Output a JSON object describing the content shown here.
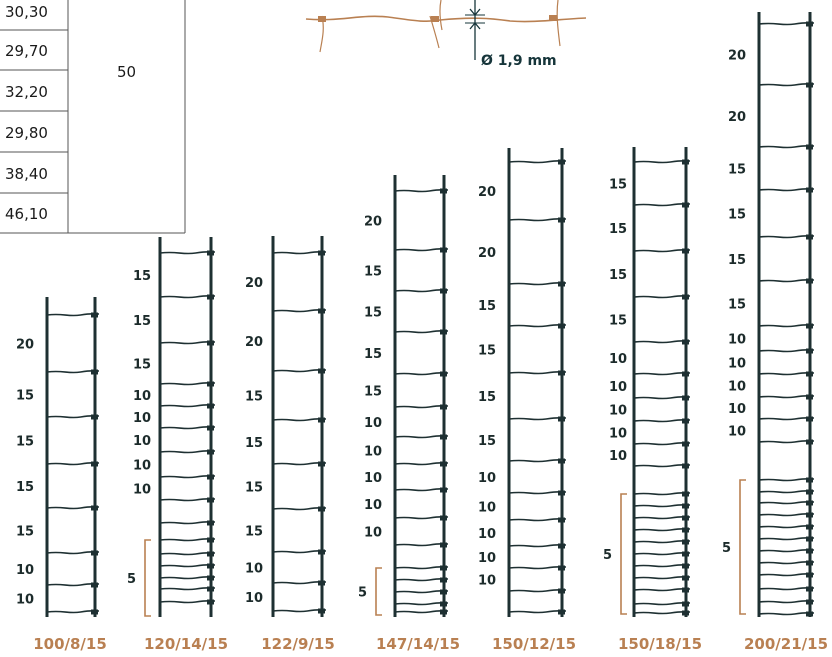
{
  "table": {
    "values": [
      "30,30",
      "29,70",
      "32,20",
      "29,80",
      "38,40",
      "46,10"
    ],
    "merged_value": "50"
  },
  "wire_diameter": "Ø 1,9 mm",
  "colors": {
    "wire": "#1e3032",
    "accent": "#b98052",
    "grid": "#555555"
  },
  "fences": [
    {
      "model": "100/8/15",
      "labels": [
        "20",
        "15",
        "15",
        "15",
        "15",
        "10",
        "10"
      ]
    },
    {
      "model": "120/14/15",
      "labels": [
        "15",
        "15",
        "15",
        "10",
        "10",
        "10",
        "10",
        "10"
      ],
      "bracket": "5"
    },
    {
      "model": "122/9/15",
      "labels": [
        "20",
        "20",
        "15",
        "15",
        "15",
        "15",
        "10",
        "10"
      ]
    },
    {
      "model": "147/14/15",
      "labels": [
        "20",
        "15",
        "15",
        "15",
        "15",
        "10",
        "10",
        "10",
        "10",
        "10"
      ],
      "bracket": "5"
    },
    {
      "model": "150/12/15",
      "labels": [
        "20",
        "20",
        "15",
        "15",
        "15",
        "15",
        "10",
        "10",
        "10",
        "10",
        "10"
      ]
    },
    {
      "model": "150/18/15",
      "labels": [
        "15",
        "15",
        "15",
        "15",
        "10",
        "10",
        "10",
        "10",
        "10"
      ],
      "bracket": "5"
    },
    {
      "model": "200/21/15",
      "labels": [
        "20",
        "20",
        "15",
        "15",
        "15",
        "15",
        "10",
        "10",
        "10",
        "10",
        "10"
      ],
      "bracket": "5"
    }
  ]
}
